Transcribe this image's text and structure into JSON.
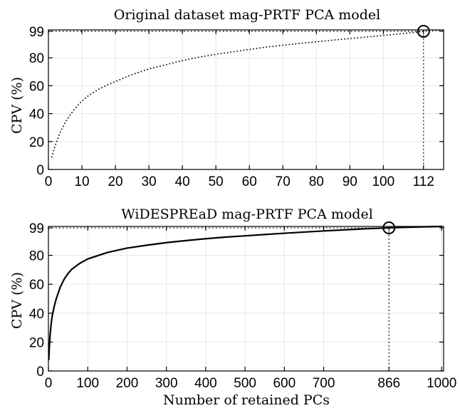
{
  "chart_data": [
    {
      "type": "line",
      "title": "Original dataset mag-PRTF PCA model",
      "ylabel": "CPV (%)",
      "xlabel": "",
      "xlim": [
        0,
        118
      ],
      "ylim": [
        0,
        100
      ],
      "xticks": [
        0,
        10,
        20,
        30,
        40,
        50,
        60,
        70,
        80,
        90,
        100,
        112
      ],
      "yticks": [
        0,
        20,
        40,
        60,
        80,
        99
      ],
      "grid": true,
      "line_style": "dotted",
      "series": [
        {
          "x": [
            1,
            2,
            3,
            4,
            5,
            6,
            8,
            10,
            12,
            15,
            18,
            20,
            25,
            30,
            35,
            40,
            45,
            50,
            55,
            60,
            65,
            70,
            75,
            80,
            85,
            90,
            95,
            100,
            105,
            110,
            112,
            115,
            118
          ],
          "values": [
            9,
            17,
            23.5,
            29,
            33.5,
            37.5,
            44,
            49,
            53,
            57.5,
            61,
            63,
            68,
            72,
            75,
            78,
            80.5,
            82.5,
            84.3,
            86,
            87.7,
            89,
            90.3,
            91.5,
            92.7,
            93.8,
            94.9,
            96,
            97.2,
            98.4,
            99,
            99.5,
            100
          ]
        }
      ],
      "marker": {
        "x": 112,
        "y": 99
      },
      "reference_lines": {
        "y": 99,
        "x": 112
      }
    },
    {
      "type": "line",
      "title": "WiDESPREaD mag-PRTF PCA model",
      "ylabel": "CPV (%)",
      "xlabel": "Number of retained PCs",
      "xlim": [
        0,
        1005
      ],
      "ylim": [
        0,
        100
      ],
      "xticks": [
        0,
        100,
        200,
        300,
        400,
        500,
        600,
        700,
        866,
        1000
      ],
      "yticks": [
        0,
        20,
        40,
        60,
        80,
        99
      ],
      "grid": true,
      "line_style": "solid",
      "series": [
        {
          "x": [
            1,
            2,
            4,
            6,
            8,
            10,
            15,
            20,
            30,
            40,
            50,
            60,
            80,
            100,
            150,
            200,
            250,
            300,
            350,
            400,
            450,
            500,
            550,
            600,
            650,
            700,
            750,
            800,
            866,
            900,
            950,
            1000
          ],
          "values": [
            8,
            15,
            24,
            30,
            35,
            38.5,
            45,
            50,
            58,
            63.5,
            67.5,
            70.5,
            74.5,
            77.5,
            82,
            85,
            87,
            88.8,
            90.2,
            91.5,
            92.6,
            93.5,
            94.4,
            95.3,
            96.1,
            96.9,
            97.6,
            98.3,
            99,
            99.3,
            99.7,
            100
          ]
        }
      ],
      "marker": {
        "x": 866,
        "y": 99
      },
      "reference_lines": {
        "y": 99,
        "x": 866
      }
    }
  ]
}
